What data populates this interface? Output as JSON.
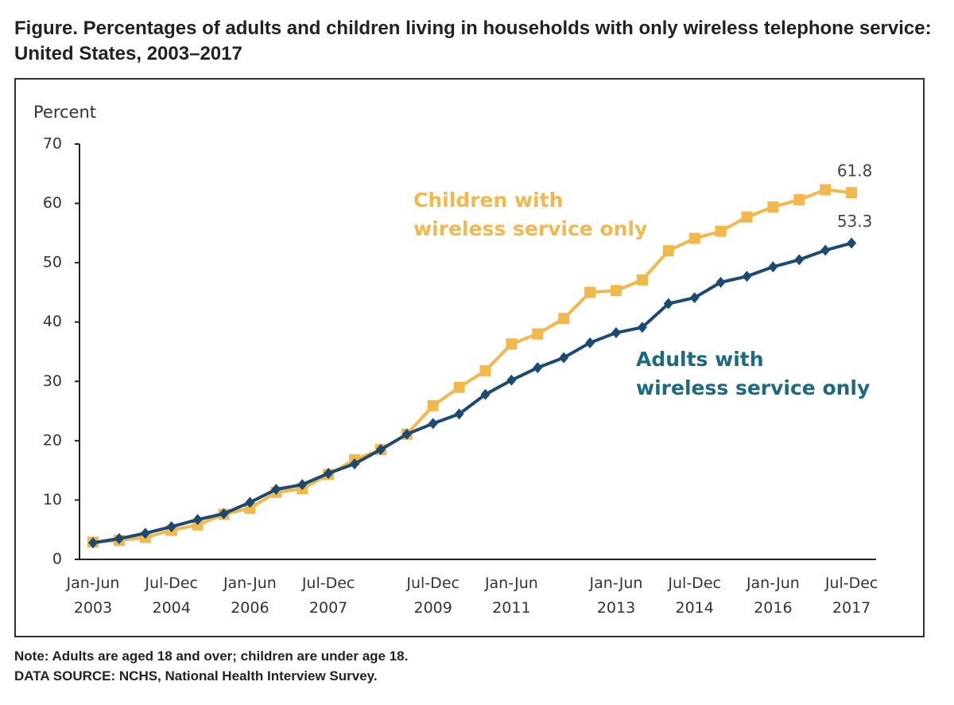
{
  "chart_data": {
    "type": "line",
    "title": "Figure. Percentages of adults and children living in households with only wireless telephone service: United States, 2003–2017",
    "ylabel": "Percent",
    "categories": [
      "Jan-Jun 2003",
      null,
      null,
      "Jul-Dec 2004",
      null,
      null,
      "Jan-Jun 2006",
      null,
      null,
      "Jul-Dec 2007",
      null,
      null,
      null,
      "Jul-Dec 2009",
      null,
      null,
      "Jan-Jun 2011",
      null,
      null,
      null,
      "Jan-Jun 2013",
      null,
      null,
      "Jul-Dec 2014",
      null,
      null,
      "Jan-Jun 2016",
      null,
      null,
      "Jul-Dec 2017"
    ],
    "series": [
      {
        "name": "Children with wireless service only",
        "color": "#f2b84b",
        "marker": "square",
        "values": [
          2.9,
          3.2,
          3.7,
          4.9,
          5.8,
          7.6,
          8.6,
          11.3,
          11.9,
          14.3,
          16.8,
          18.5,
          21.1,
          25.9,
          29.0,
          31.8,
          36.3,
          38.0,
          40.6,
          45.0,
          45.3,
          47.1,
          52.0,
          54.1,
          55.3,
          57.7,
          59.4,
          60.6,
          62.3,
          61.8
        ]
      },
      {
        "name": "Adults with wireless service only",
        "color": "#1b4a72",
        "marker": "diamond",
        "values": [
          2.8,
          3.5,
          4.4,
          5.5,
          6.7,
          7.7,
          9.6,
          11.8,
          12.6,
          14.5,
          16.1,
          18.5,
          21.1,
          22.9,
          24.5,
          27.8,
          30.2,
          32.3,
          34.0,
          36.5,
          38.2,
          39.1,
          43.1,
          44.1,
          46.7,
          47.7,
          49.3,
          50.5,
          52.1,
          53.3
        ]
      }
    ],
    "annotations": [
      {
        "lines": [
          "Children with",
          "wireless service only"
        ],
        "color": "#f2b84b"
      },
      {
        "lines": [
          "Adults with",
          "wireless service only"
        ],
        "color": "#1a6a80"
      }
    ],
    "ylim": [
      0,
      70
    ],
    "yticks": [
      0,
      10,
      20,
      30,
      40,
      50,
      60,
      70
    ],
    "note": "Note: Adults are aged 18 and over; children are under age 18.",
    "source": "DATA SOURCE: NCHS, National Health Interview Survey."
  }
}
